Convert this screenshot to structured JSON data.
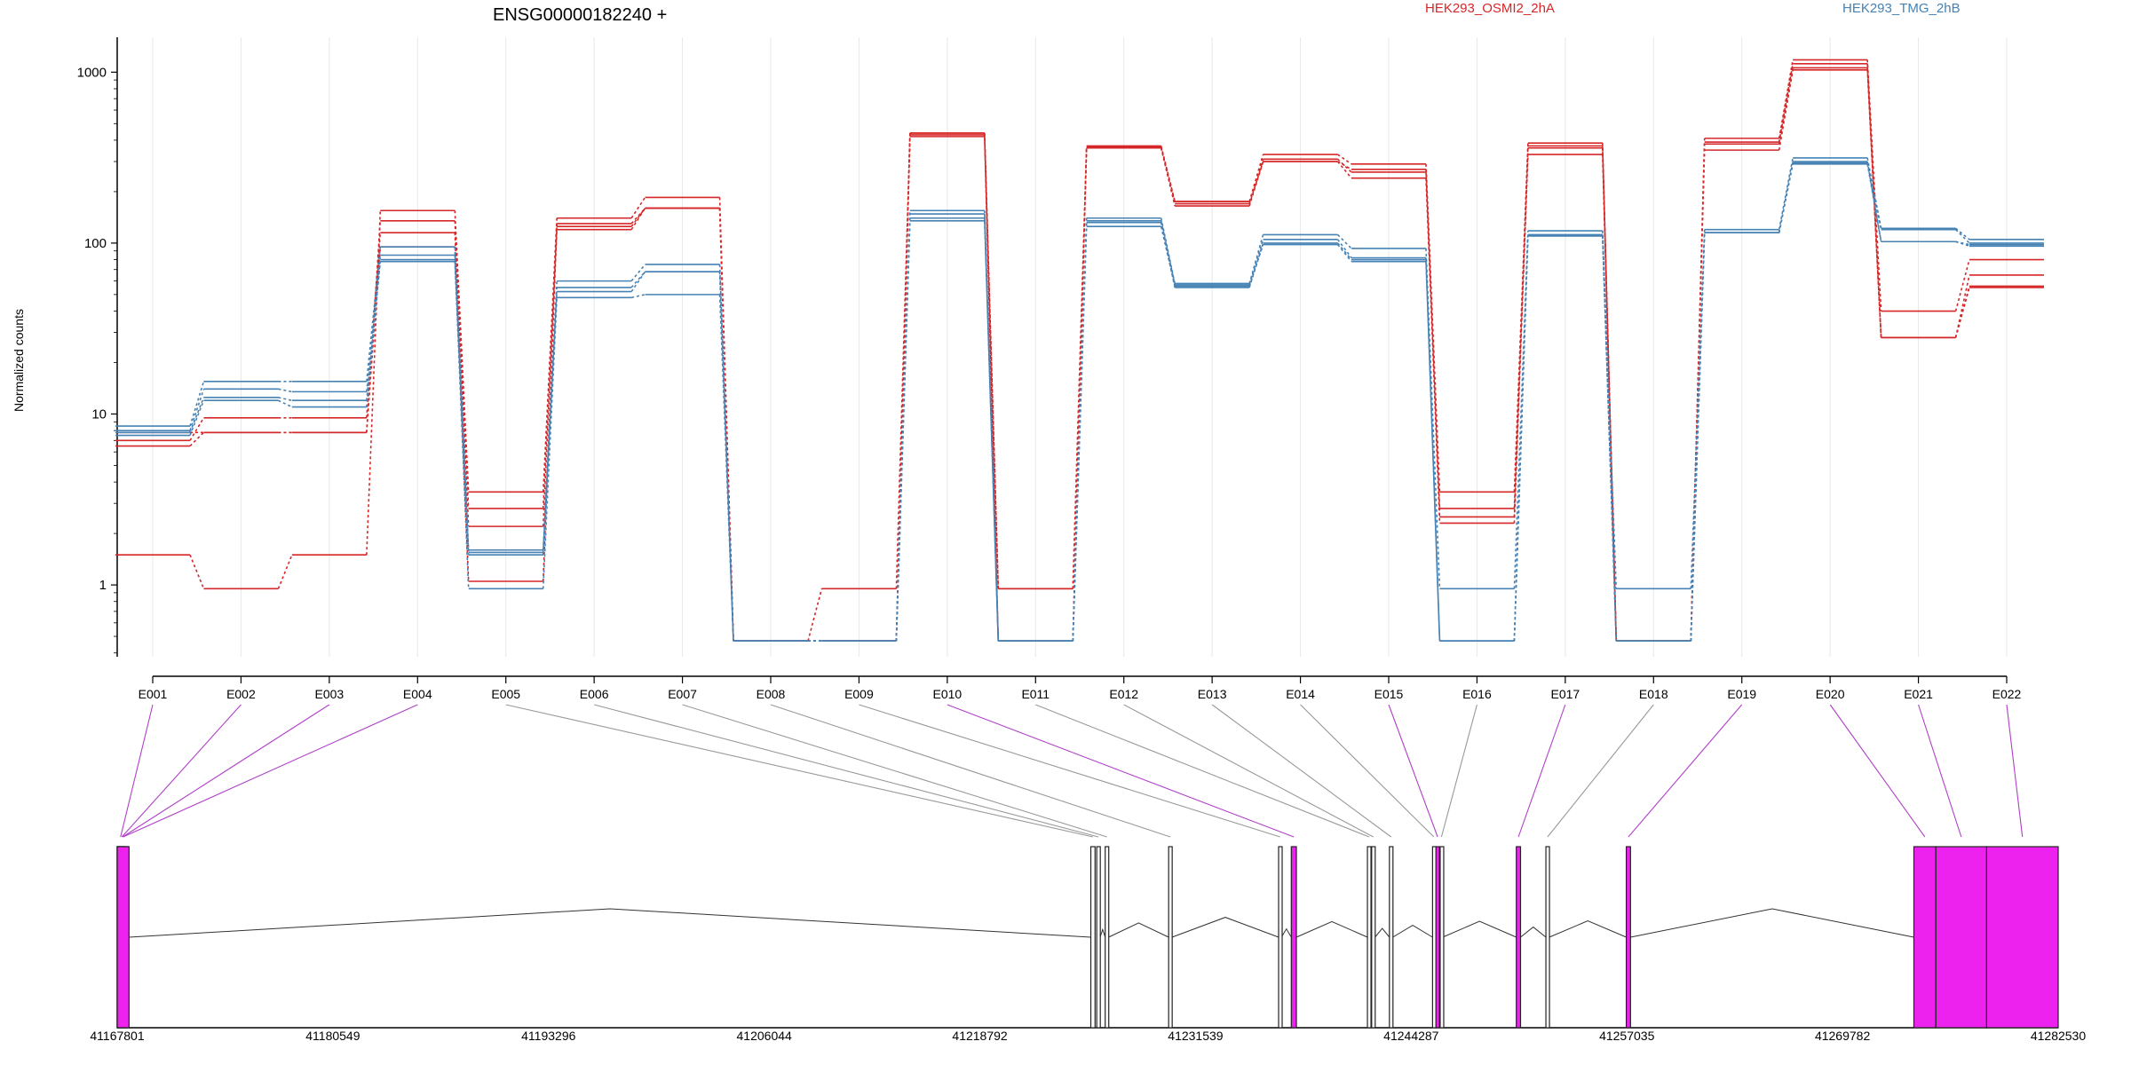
{
  "title": "ENSG00000182240 +",
  "legend": {
    "items": [
      {
        "label": "HEK293_OSMI2_2hA",
        "color": "#d62728"
      },
      {
        "label": "HEK293_TMG_2hB",
        "color": "#4682b4"
      }
    ],
    "placement": "top-right"
  },
  "chart_data": {
    "type": "line",
    "title": "ENSG00000182240 +",
    "ylabel": "Normalized counts",
    "yscale": "log",
    "ylim": [
      0.38,
      1600
    ],
    "yticks": [
      1,
      10,
      100,
      1000
    ],
    "ytick_labels": [
      "1",
      "10",
      "100",
      "1000"
    ],
    "grid": "vertical",
    "categories": [
      "E001",
      "E002",
      "E003",
      "E004",
      "E005",
      "E006",
      "E007",
      "E008",
      "E009",
      "E010",
      "E011",
      "E012",
      "E013",
      "E014",
      "E015",
      "E016",
      "E017",
      "E018",
      "E019",
      "E020",
      "E021",
      "E022"
    ],
    "series": [
      {
        "group": "HEK293_OSMI2_2hA",
        "color": "#d62728",
        "values": [
          1.5,
          0.95,
          1.5,
          155,
          3.5,
          140,
          185,
          0.47,
          0.95,
          440,
          0.95,
          365,
          175,
          330,
          290,
          3.5,
          385,
          0.47,
          410,
          1180,
          40,
          80
        ]
      },
      {
        "group": "HEK293_OSMI2_2hA",
        "color": "#d62728",
        "values": [
          6.5,
          7.8,
          7.8,
          135,
          2.8,
          130,
          160,
          0.47,
          0.47,
          430,
          0.95,
          360,
          170,
          300,
          270,
          2.8,
          370,
          0.47,
          390,
          1120,
          28,
          65
        ]
      },
      {
        "group": "HEK293_OSMI2_2hA",
        "color": "#d62728",
        "values": [
          7.0,
          9.5,
          9.5,
          115,
          2.2,
          120,
          160,
          0.47,
          0.47,
          420,
          0.47,
          360,
          165,
          300,
          240,
          2.5,
          330,
          0.47,
          350,
          1030,
          28,
          55
        ]
      },
      {
        "group": "HEK293_OSMI2_2hA",
        "color": "#d62728",
        "values": [
          7.8,
          7.8,
          7.8,
          95,
          1.05,
          125,
          160,
          0.47,
          0.47,
          440,
          0.47,
          370,
          175,
          310,
          260,
          2.3,
          360,
          0.47,
          380,
          1060,
          28,
          56
        ]
      },
      {
        "group": "HEK293_TMG_2hB",
        "color": "#4682b4",
        "values": [
          8.5,
          15.5,
          15.5,
          95,
          1.6,
          60,
          75,
          0.47,
          0.47,
          155,
          0.47,
          140,
          58,
          112,
          93,
          0.95,
          118,
          0.95,
          120,
          315,
          122,
          105
        ]
      },
      {
        "group": "HEK293_TMG_2hB",
        "color": "#4682b4",
        "values": [
          8.0,
          14,
          13.5,
          85,
          1.5,
          55,
          68,
          0.47,
          0.47,
          148,
          0.47,
          135,
          57,
          105,
          82,
          0.47,
          112,
          0.47,
          115,
          300,
          102,
          98
        ]
      },
      {
        "group": "HEK293_TMG_2hB",
        "color": "#4682b4",
        "values": [
          7.5,
          12,
          11,
          80,
          0.95,
          48,
          50,
          0.47,
          0.47,
          135,
          0.47,
          125,
          56,
          98,
          78,
          0.47,
          110,
          0.47,
          115,
          290,
          102,
          96
        ]
      },
      {
        "group": "HEK293_TMG_2hB",
        "color": "#4682b4",
        "values": [
          7.8,
          12.5,
          12.0,
          78,
          1.55,
          52,
          68,
          0.47,
          0.47,
          140,
          0.47,
          132,
          55,
          100,
          80,
          0.47,
          111,
          0.47,
          115,
          295,
          120,
          100
        ]
      }
    ]
  },
  "gene_model": {
    "coordinate_labels": [
      "41167801",
      "41180549",
      "41193296",
      "41206044",
      "41218792",
      "41231539",
      "41244287",
      "41257035",
      "41269782",
      "41282530"
    ],
    "start": 41167801,
    "end": 41282530,
    "highlight_color": "#ee22ee",
    "exons": [
      {
        "bin": "E001",
        "start": 41167801,
        "end": 41168200,
        "highlight": true
      },
      {
        "bin": "E002",
        "start": 41167801,
        "end": 41168350,
        "highlight": true
      },
      {
        "bin": "E003",
        "start": 41167801,
        "end": 41168450,
        "highlight": true
      },
      {
        "bin": "E004",
        "start": 41167801,
        "end": 41168500,
        "highlight": true
      },
      {
        "bin": "E005",
        "start": 41225350,
        "end": 41225600,
        "highlight": false
      },
      {
        "bin": "E006",
        "start": 41225700,
        "end": 41225900,
        "highlight": false
      },
      {
        "bin": "E007",
        "start": 41226200,
        "end": 41226400,
        "highlight": false
      },
      {
        "bin": "E008",
        "start": 41229950,
        "end": 41230150,
        "highlight": false
      },
      {
        "bin": "E009",
        "start": 41236450,
        "end": 41236620,
        "highlight": false
      },
      {
        "bin": "E010",
        "start": 41237200,
        "end": 41237500,
        "highlight": true
      },
      {
        "bin": "E011",
        "start": 41241700,
        "end": 41241900,
        "highlight": false
      },
      {
        "bin": "E012",
        "start": 41241950,
        "end": 41242150,
        "highlight": false
      },
      {
        "bin": "E013",
        "start": 41243000,
        "end": 41243200,
        "highlight": false
      },
      {
        "bin": "E014",
        "start": 41245550,
        "end": 41245700,
        "highlight": false
      },
      {
        "bin": "E015",
        "start": 41245750,
        "end": 41245950,
        "highlight": true
      },
      {
        "bin": "E016",
        "start": 41246000,
        "end": 41246150,
        "highlight": false
      },
      {
        "bin": "E017",
        "start": 41250500,
        "end": 41250750,
        "highlight": true
      },
      {
        "bin": "E018",
        "start": 41252250,
        "end": 41252450,
        "highlight": false
      },
      {
        "bin": "E019",
        "start": 41257000,
        "end": 41257250,
        "highlight": true
      },
      {
        "bin": "E020",
        "start": 41274000,
        "end": 41275300,
        "highlight": true
      },
      {
        "bin": "E021",
        "start": 41275300,
        "end": 41278300,
        "highlight": true
      },
      {
        "bin": "E022",
        "start": 41278300,
        "end": 41282530,
        "highlight": true
      }
    ]
  }
}
